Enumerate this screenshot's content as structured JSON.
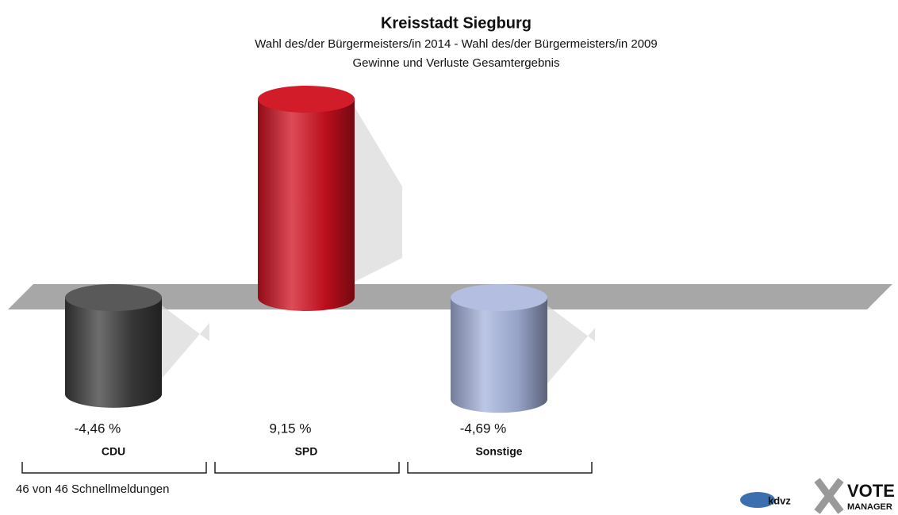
{
  "chart_data": {
    "type": "bar",
    "title": "Kreisstadt Siegburg",
    "subtitle": "Wahl des/der Bürgermeisters/in  2014 - Wahl des/der Bürgermeisters/in 2009",
    "subtitle2": "Gewinne und Verluste Gesamtergebnis",
    "categories": [
      "CDU",
      "SPD",
      "Sonstige"
    ],
    "values": [
      -4.46,
      9.15,
      -4.69
    ],
    "value_labels": [
      "-4,46 %",
      "9,15 %",
      "-4,69 %"
    ],
    "colors": [
      "#3c3c3c",
      "#d0101f",
      "#a6b3dc"
    ],
    "footnote": "46 von 46 Schnellmeldungen",
    "logo": [
      "kdvz",
      "VOTE",
      "MANAGER"
    ]
  }
}
